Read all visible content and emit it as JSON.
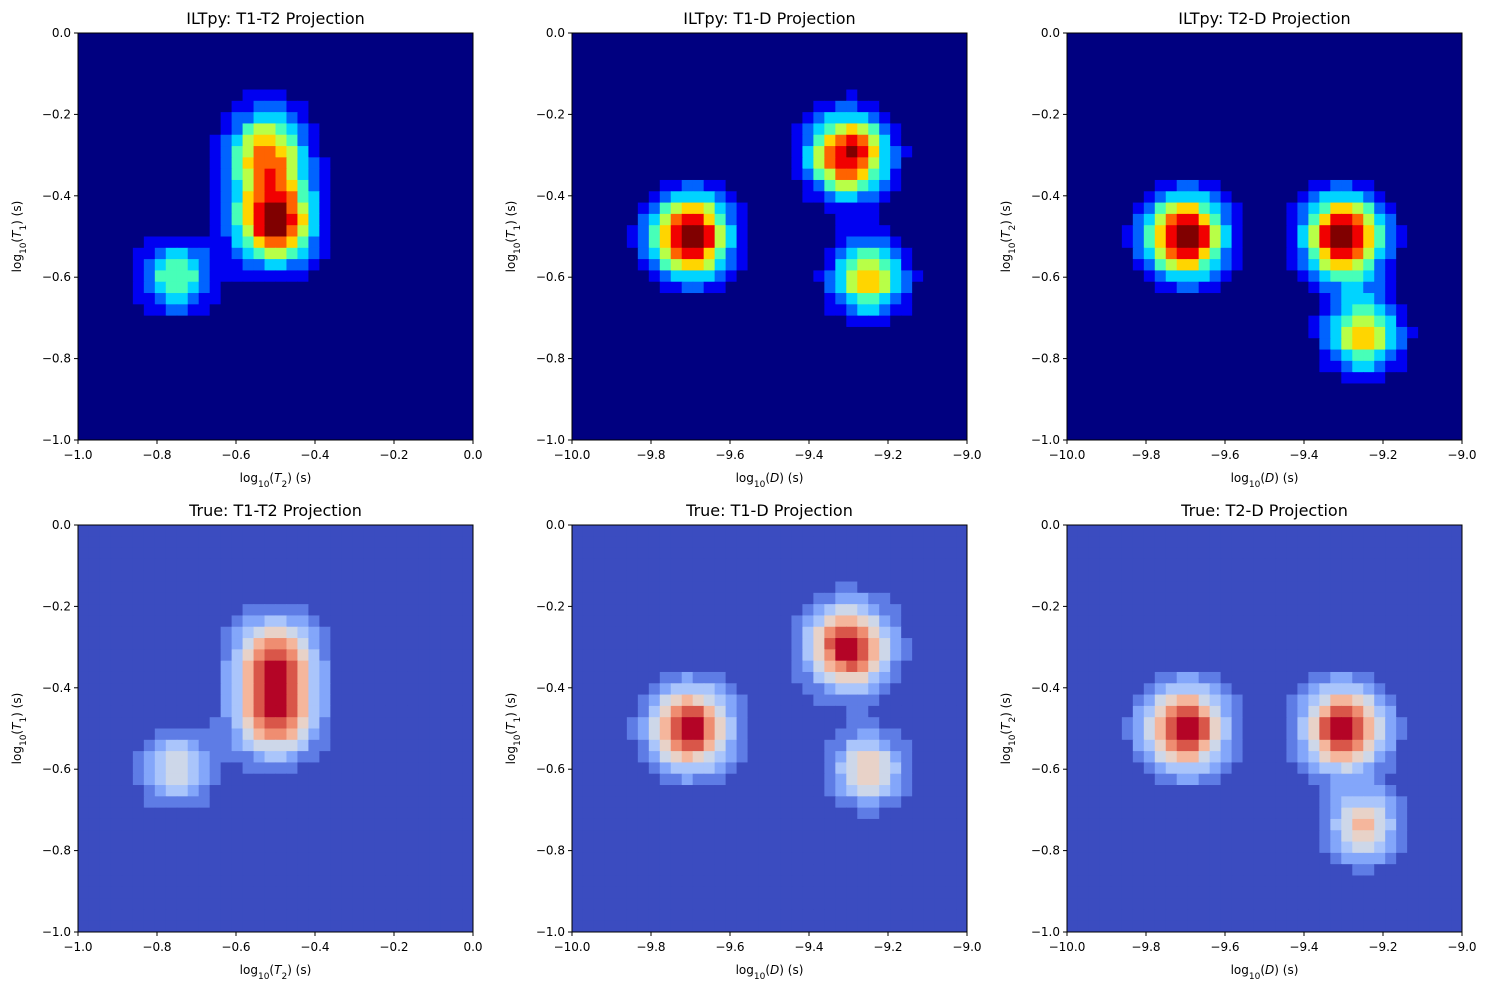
{
  "chart_data": [
    {
      "type": "heatmap",
      "title": "ILTpy: T1-T2 Projection",
      "colormap": "jet",
      "xlabel": {
        "base": "log",
        "sub": "10",
        "arg": "(T",
        "argsub": "2",
        "tail": ") (s)"
      },
      "ylabel": {
        "base": "log",
        "sub": "10",
        "arg": "(T",
        "argsub": "1",
        "tail": ") (s)"
      },
      "xlim": [
        -1.0,
        0.0
      ],
      "ylim": [
        -1.0,
        0.0
      ],
      "xticks": [
        "−1.0",
        "−0.8",
        "−0.6",
        "−0.4",
        "−0.2",
        "0.0"
      ],
      "yticks": [
        "−1.0",
        "−0.8",
        "−0.6",
        "−0.4",
        "−0.2",
        "0.0"
      ],
      "grid": false,
      "peaks": [
        {
          "x": -0.5,
          "y": -0.47,
          "sx": 0.07,
          "sy": 0.07,
          "amp": 1.0
        },
        {
          "x": -0.52,
          "y": -0.3,
          "sx": 0.07,
          "sy": 0.08,
          "amp": 0.78
        },
        {
          "x": -0.75,
          "y": -0.6,
          "sx": 0.065,
          "sy": 0.06,
          "amp": 0.55
        }
      ]
    },
    {
      "type": "heatmap",
      "title": "ILTpy: T1-D Projection",
      "colormap": "jet",
      "xlabel": {
        "base": "log",
        "sub": "10",
        "arg": "(D",
        "argsub": "",
        "tail": ") (s)"
      },
      "ylabel": {
        "base": "log",
        "sub": "10",
        "arg": "(T",
        "argsub": "1",
        "tail": ") (s)"
      },
      "xlim": [
        -10.0,
        -9.0
      ],
      "ylim": [
        -1.0,
        0.0
      ],
      "xticks": [
        "−10.0",
        "−9.8",
        "−9.6",
        "−9.4",
        "−9.2",
        "−9.0"
      ],
      "yticks": [
        "−1.0",
        "−0.8",
        "−0.6",
        "−0.4",
        "−0.2",
        "0.0"
      ],
      "grid": false,
      "peaks": [
        {
          "x": -9.7,
          "y": -0.5,
          "sx": 0.07,
          "sy": 0.07,
          "amp": 1.0
        },
        {
          "x": -9.3,
          "y": -0.3,
          "sx": 0.07,
          "sy": 0.07,
          "amp": 0.9
        },
        {
          "x": -9.25,
          "y": -0.6,
          "sx": 0.065,
          "sy": 0.065,
          "amp": 0.65
        }
      ]
    },
    {
      "type": "heatmap",
      "title": "ILTpy: T2-D Projection",
      "colormap": "jet",
      "xlabel": {
        "base": "log",
        "sub": "10",
        "arg": "(D",
        "argsub": "",
        "tail": ") (s)"
      },
      "ylabel": {
        "base": "log",
        "sub": "10",
        "arg": "(T",
        "argsub": "2",
        "tail": ") (s)"
      },
      "xlim": [
        -10.0,
        -9.0
      ],
      "ylim": [
        -1.0,
        0.0
      ],
      "xticks": [
        "−10.0",
        "−9.8",
        "−9.6",
        "−9.4",
        "−9.2",
        "−9.0"
      ],
      "yticks": [
        "−1.0",
        "−0.8",
        "−0.6",
        "−0.4",
        "−0.2",
        "0.0"
      ],
      "grid": false,
      "peaks": [
        {
          "x": -9.7,
          "y": -0.5,
          "sx": 0.07,
          "sy": 0.07,
          "amp": 1.0
        },
        {
          "x": -9.3,
          "y": -0.5,
          "sx": 0.07,
          "sy": 0.07,
          "amp": 1.0
        },
        {
          "x": -9.25,
          "y": -0.74,
          "sx": 0.065,
          "sy": 0.065,
          "amp": 0.65
        }
      ]
    },
    {
      "type": "heatmap",
      "title": "True: T1-T2 Projection",
      "colormap": "coolwarm",
      "xlabel": {
        "base": "log",
        "sub": "10",
        "arg": "(T",
        "argsub": "2",
        "tail": ") (s)"
      },
      "ylabel": {
        "base": "log",
        "sub": "10",
        "arg": "(T",
        "argsub": "1",
        "tail": ") (s)"
      },
      "xlim": [
        -1.0,
        0.0
      ],
      "ylim": [
        -1.0,
        0.0
      ],
      "xticks": [
        "−1.0",
        "−0.8",
        "−0.6",
        "−0.4",
        "−0.2",
        "0.0"
      ],
      "yticks": [
        "−1.0",
        "−0.8",
        "−0.6",
        "−0.4",
        "−0.2",
        "0.0"
      ],
      "grid": false,
      "peaks": [
        {
          "x": -0.5,
          "y": -0.47,
          "sx": 0.07,
          "sy": 0.07,
          "amp": 1.0
        },
        {
          "x": -0.5,
          "y": -0.33,
          "sx": 0.07,
          "sy": 0.07,
          "amp": 1.0
        },
        {
          "x": -0.75,
          "y": -0.6,
          "sx": 0.06,
          "sy": 0.06,
          "amp": 0.6
        }
      ]
    },
    {
      "type": "heatmap",
      "title": "True: T1-D Projection",
      "colormap": "coolwarm",
      "xlabel": {
        "base": "log",
        "sub": "10",
        "arg": "(D",
        "argsub": "",
        "tail": ") (s)"
      },
      "ylabel": {
        "base": "log",
        "sub": "10",
        "arg": "(T",
        "argsub": "1",
        "tail": ") (s)"
      },
      "xlim": [
        -10.0,
        -9.0
      ],
      "ylim": [
        -1.0,
        0.0
      ],
      "xticks": [
        "−10.0",
        "−9.8",
        "−9.6",
        "−9.4",
        "−9.2",
        "−9.0"
      ],
      "yticks": [
        "−1.0",
        "−0.8",
        "−0.6",
        "−0.4",
        "−0.2",
        "0.0"
      ],
      "grid": false,
      "peaks": [
        {
          "x": -9.7,
          "y": -0.5,
          "sx": 0.07,
          "sy": 0.07,
          "amp": 1.0
        },
        {
          "x": -9.3,
          "y": -0.3,
          "sx": 0.07,
          "sy": 0.07,
          "amp": 1.0
        },
        {
          "x": -9.25,
          "y": -0.6,
          "sx": 0.06,
          "sy": 0.06,
          "amp": 0.6
        }
      ]
    },
    {
      "type": "heatmap",
      "title": "True: T2-D Projection",
      "colormap": "coolwarm",
      "xlabel": {
        "base": "log",
        "sub": "10",
        "arg": "(D",
        "argsub": "",
        "tail": ") (s)"
      },
      "ylabel": {
        "base": "log",
        "sub": "10",
        "arg": "(T",
        "argsub": "2",
        "tail": ") (s)"
      },
      "xlim": [
        -10.0,
        -9.0
      ],
      "ylim": [
        -1.0,
        0.0
      ],
      "xticks": [
        "−10.0",
        "−9.8",
        "−9.6",
        "−9.4",
        "−9.2",
        "−9.0"
      ],
      "yticks": [
        "−1.0",
        "−0.8",
        "−0.6",
        "−0.4",
        "−0.2",
        "0.0"
      ],
      "grid": false,
      "peaks": [
        {
          "x": -9.7,
          "y": -0.5,
          "sx": 0.07,
          "sy": 0.07,
          "amp": 1.0
        },
        {
          "x": -9.3,
          "y": -0.5,
          "sx": 0.07,
          "sy": 0.07,
          "amp": 1.0
        },
        {
          "x": -9.25,
          "y": -0.74,
          "sx": 0.06,
          "sy": 0.06,
          "amp": 0.6
        }
      ]
    }
  ]
}
